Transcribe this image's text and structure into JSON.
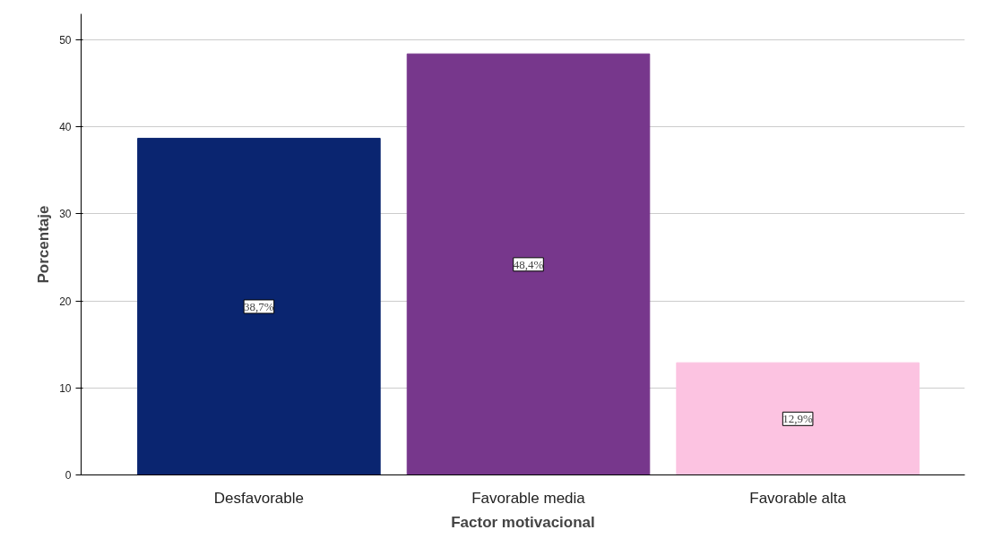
{
  "chart_data": {
    "type": "bar",
    "xlabel": "Factor motivacional",
    "ylabel": "Porcentaje",
    "categories": [
      "Desfavorable",
      "Favorable media",
      "Favorable alta"
    ],
    "values": [
      38.7,
      48.4,
      12.9
    ],
    "colors": [
      "#0a2570",
      "#77378c",
      "#fcc3e1"
    ],
    "value_labels": [
      "38,7%",
      "48,4%",
      "12,9%"
    ],
    "ylim": [
      0,
      53
    ],
    "yticks": [
      0,
      10,
      20,
      30,
      40,
      50
    ],
    "grid": "y"
  }
}
